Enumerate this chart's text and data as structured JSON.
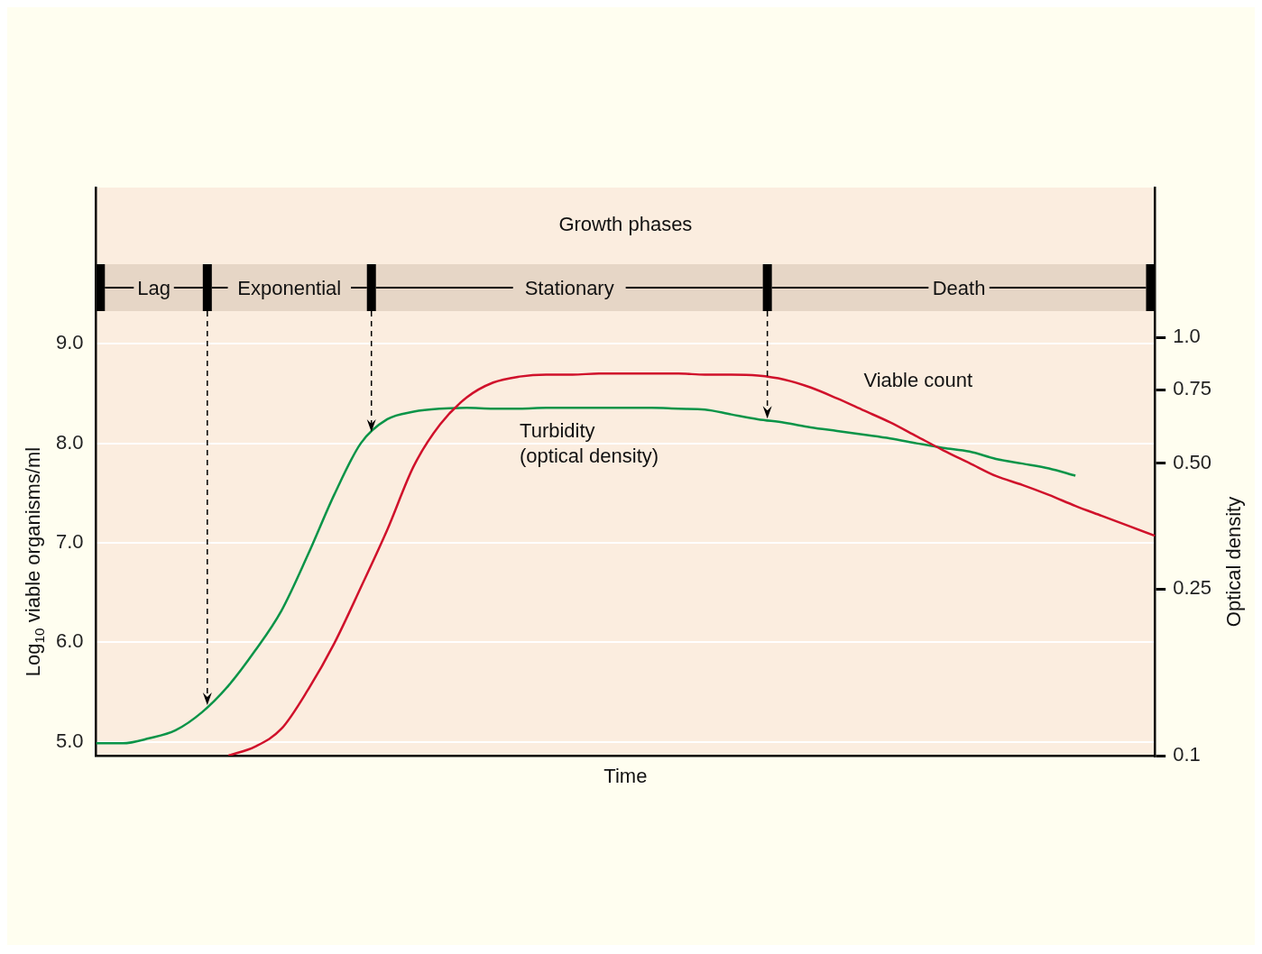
{
  "chart_data": {
    "type": "line",
    "title": "Growth phases",
    "xlabel": "Time",
    "ylabel": "Log$_{10}$ viable organisms/ml",
    "y2label": "Optical density",
    "categories": [
      null,
      null,
      null,
      null,
      null,
      null,
      null,
      null,
      null,
      null,
      null,
      null,
      null,
      null,
      null,
      null,
      null,
      null,
      null,
      null,
      null,
      null,
      null,
      null,
      null,
      null,
      null,
      null,
      null,
      null,
      null,
      null,
      null,
      null,
      null,
      null,
      null,
      null,
      null,
      null,
      null
    ],
    "series": [
      {
        "name": "Viable count",
        "color": "#d0112b",
        "values": [
          null,
          null,
          null,
          null,
          null,
          4.86,
          4.95,
          5.13,
          5.52,
          5.99,
          6.55,
          7.13,
          7.77,
          8.19,
          8.46,
          8.61,
          8.67,
          8.69,
          8.69,
          8.7,
          8.7,
          8.7,
          8.7,
          8.69,
          8.69,
          8.68,
          8.64,
          8.56,
          8.45,
          8.33,
          8.21,
          8.07,
          7.93,
          7.8,
          7.67,
          7.58,
          7.48,
          7.37,
          7.27,
          7.17,
          7.07
        ]
      },
      {
        "name": "Turbidity (optical density)",
        "color": "#0a9448",
        "axis": "y2",
        "values": [
          0.107,
          0.107,
          0.11,
          0.115,
          0.127,
          0.147,
          0.178,
          0.222,
          0.302,
          0.421,
          0.558,
          0.637,
          0.664,
          0.675,
          0.678,
          0.675,
          0.675,
          0.678,
          0.678,
          0.678,
          0.678,
          0.678,
          0.675,
          0.672,
          0.654,
          0.637,
          0.625,
          0.609,
          0.597,
          0.585,
          0.573,
          0.558,
          0.544,
          0.533,
          0.512,
          0.499,
          0.486,
          0.467,
          null,
          null,
          null
        ]
      }
    ],
    "ylim": [
      4.86,
      10.57
    ],
    "yticks": [
      {
        "value": 5,
        "label": "5.0"
      },
      {
        "value": 6,
        "label": "6.0"
      },
      {
        "value": 7,
        "label": "7.0"
      },
      {
        "value": 8,
        "label": "8.0"
      },
      {
        "value": 9,
        "label": "9.0"
      }
    ],
    "y2lim": [
      0.1,
      2.28
    ],
    "y2ticks": [
      {
        "value": 0.1,
        "label": "0.1"
      },
      {
        "value": 0.25,
        "label": "0.25"
      },
      {
        "value": 0.5,
        "label": "0.50"
      },
      {
        "value": 0.75,
        "label": "0.75"
      },
      {
        "value": 1,
        "label": "1.0"
      }
    ],
    "log": "y2",
    "grid": "y",
    "marker": "none",
    "tick_labels": "y",
    "annotations": [
      "Lag",
      "Exponential",
      "Stationary",
      "Death"
    ]
  }
}
